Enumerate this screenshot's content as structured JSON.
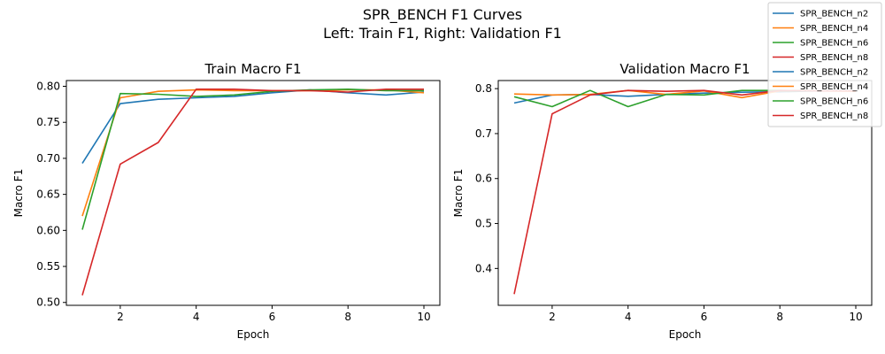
{
  "figure": {
    "title": "SPR_BENCH F1 Curves",
    "subtitle": "Left: Train F1, Right: Validation F1"
  },
  "legend": {
    "placement": "top-right",
    "entries": [
      {
        "label": "SPR_BENCH_n2",
        "color": "#1f77b4"
      },
      {
        "label": "SPR_BENCH_n4",
        "color": "#ff7f0e"
      },
      {
        "label": "SPR_BENCH_n6",
        "color": "#2ca02c"
      },
      {
        "label": "SPR_BENCH_n8",
        "color": "#d62728"
      },
      {
        "label": "SPR_BENCH_n2",
        "color": "#1f77b4"
      },
      {
        "label": "SPR_BENCH_n4",
        "color": "#ff7f0e"
      },
      {
        "label": "SPR_BENCH_n6",
        "color": "#2ca02c"
      },
      {
        "label": "SPR_BENCH_n8",
        "color": "#d62728"
      }
    ]
  },
  "chart_data": [
    {
      "type": "line",
      "title": "Train Macro F1",
      "xlabel": "Epoch",
      "ylabel": "Macro F1",
      "xlim": [
        0.58,
        10.42
      ],
      "ylim": [
        0.496,
        0.808
      ],
      "xticks": [
        2,
        4,
        6,
        8,
        10
      ],
      "yticks": [
        0.5,
        0.55,
        0.6,
        0.65,
        0.7,
        0.75,
        0.8
      ],
      "ytick_labels": [
        "0.50",
        "0.55",
        "0.60",
        "0.65",
        "0.70",
        "0.75",
        "0.80"
      ],
      "grid": false,
      "x": [
        1,
        2,
        3,
        4,
        5,
        6,
        7,
        8,
        9,
        10
      ],
      "series": [
        {
          "name": "SPR_BENCH_n2",
          "color": "#1f77b4",
          "values": [
            0.693,
            0.776,
            0.782,
            0.784,
            0.786,
            0.791,
            0.795,
            0.791,
            0.788,
            0.792
          ]
        },
        {
          "name": "SPR_BENCH_n4",
          "color": "#ff7f0e",
          "values": [
            0.62,
            0.784,
            0.793,
            0.795,
            0.794,
            0.794,
            0.794,
            0.795,
            0.795,
            0.791
          ]
        },
        {
          "name": "SPR_BENCH_n6",
          "color": "#2ca02c",
          "values": [
            0.601,
            0.79,
            0.789,
            0.786,
            0.788,
            0.793,
            0.795,
            0.796,
            0.794,
            0.794
          ]
        },
        {
          "name": "SPR_BENCH_n8",
          "color": "#d62728",
          "values": [
            0.51,
            0.692,
            0.722,
            0.796,
            0.796,
            0.794,
            0.794,
            0.792,
            0.796,
            0.796
          ]
        }
      ]
    },
    {
      "type": "line",
      "title": "Validation Macro F1",
      "xlabel": "Epoch",
      "ylabel": "Macro F1",
      "xlim": [
        0.58,
        10.42
      ],
      "ylim": [
        0.318,
        0.818
      ],
      "xticks": [
        2,
        4,
        6,
        8,
        10
      ],
      "yticks": [
        0.4,
        0.5,
        0.6,
        0.7,
        0.8
      ],
      "ytick_labels": [
        "0.4",
        "0.5",
        "0.6",
        "0.7",
        "0.8"
      ],
      "grid": false,
      "x": [
        1,
        2,
        3,
        4,
        5,
        6,
        7,
        8,
        9,
        10
      ],
      "series": [
        {
          "name": "SPR_BENCH_n2",
          "color": "#1f77b4",
          "values": [
            0.768,
            0.786,
            0.787,
            0.783,
            0.787,
            0.79,
            0.792,
            0.793,
            0.795,
            0.795
          ]
        },
        {
          "name": "SPR_BENCH_n4",
          "color": "#ff7f0e",
          "values": [
            0.788,
            0.786,
            0.787,
            0.796,
            0.787,
            0.795,
            0.78,
            0.795,
            0.795,
            0.794
          ]
        },
        {
          "name": "SPR_BENCH_n6",
          "color": "#2ca02c",
          "values": [
            0.782,
            0.76,
            0.796,
            0.76,
            0.787,
            0.786,
            0.796,
            0.796,
            0.795,
            0.795
          ]
        },
        {
          "name": "SPR_BENCH_n8",
          "color": "#d62728",
          "values": [
            0.343,
            0.744,
            0.786,
            0.796,
            0.794,
            0.796,
            0.786,
            0.796,
            0.795,
            0.795
          ]
        }
      ]
    }
  ]
}
